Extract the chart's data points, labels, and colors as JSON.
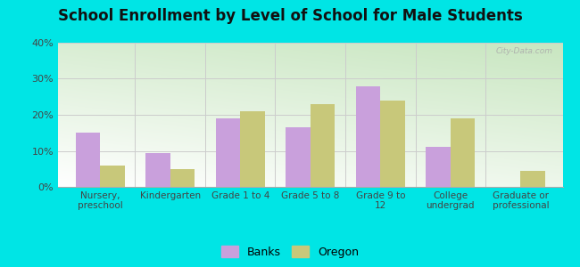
{
  "title": "School Enrollment by Level of School for Male Students",
  "categories": [
    "Nursery,\npreschool",
    "Kindergarten",
    "Grade 1 to 4",
    "Grade 5 to 8",
    "Grade 9 to\n12",
    "College\nundergrad",
    "Graduate or\nprofessional"
  ],
  "banks": [
    15.0,
    9.5,
    19.0,
    16.5,
    28.0,
    11.0,
    0.0
  ],
  "oregon": [
    6.0,
    5.0,
    21.0,
    23.0,
    24.0,
    19.0,
    4.5
  ],
  "banks_color": "#c9a0dc",
  "oregon_color": "#c8c87a",
  "ylim": [
    0,
    40
  ],
  "yticks": [
    0,
    10,
    20,
    30,
    40
  ],
  "ytick_labels": [
    "0%",
    "10%",
    "20%",
    "30%",
    "40%"
  ],
  "background_outer": "#00e5e5",
  "title_fontsize": 12,
  "legend_banks": "Banks",
  "legend_oregon": "Oregon",
  "watermark": "City-Data.com"
}
